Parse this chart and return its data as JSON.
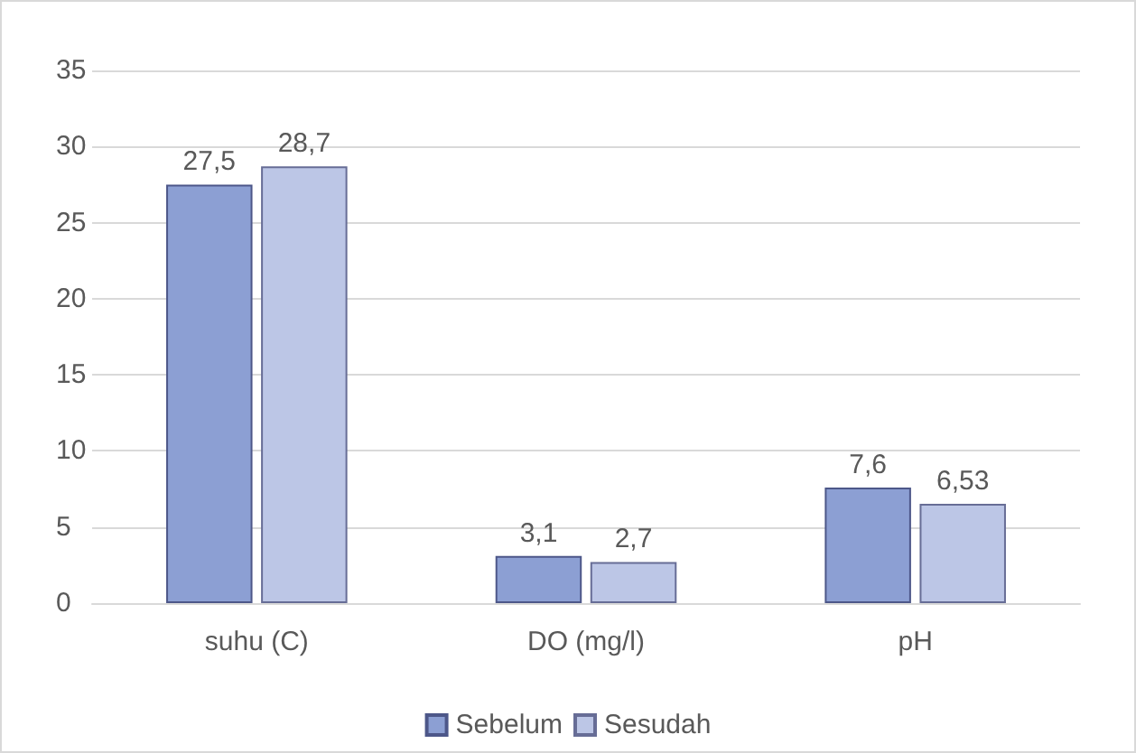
{
  "chart_data": {
    "type": "bar",
    "categories": [
      "suhu (C)",
      "DO (mg/l)",
      "pH"
    ],
    "series": [
      {
        "name": "Sebelum",
        "color": "#8c9fd3",
        "values": [
          27.5,
          3.1,
          7.6
        ],
        "value_labels": [
          "27,5",
          "3,1",
          "7,6"
        ]
      },
      {
        "name": "Sesudah",
        "color": "#bcc6e6",
        "values": [
          28.7,
          2.7,
          6.53
        ],
        "value_labels": [
          "28,7",
          "2,7",
          "6,53"
        ]
      }
    ],
    "ylim": [
      0,
      35
    ],
    "yticks": [
      0,
      5,
      10,
      15,
      20,
      25,
      30,
      35
    ],
    "grid": "y",
    "legend": "bottom"
  }
}
